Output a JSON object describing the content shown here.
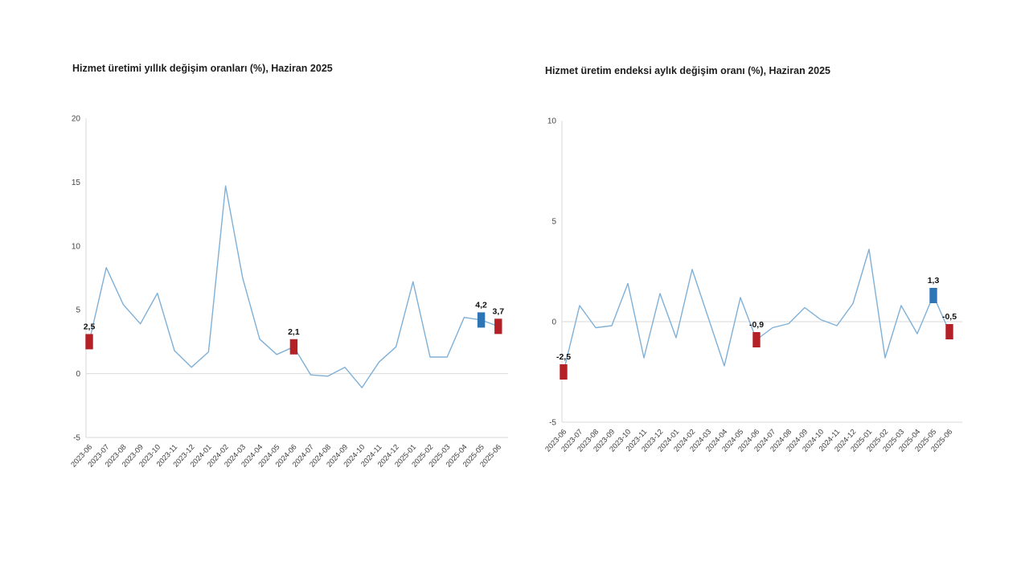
{
  "page": {
    "background": "#ffffff",
    "source_note": ""
  },
  "colors": {
    "series_line": "#7fb0d7",
    "marker_red": "#b32025",
    "marker_blue": "#2e75b6",
    "axis_line": "#d9d9d9",
    "zero_line": "#d9d9d9",
    "tick_text": "#454545",
    "title_text": "#1d1d1d",
    "data_label_text": "#111111"
  },
  "chart_data": [
    {
      "type": "line",
      "title": "Hizmet üretimi yıllık değişim oranları (%), Haziran 2025",
      "xlabel": "",
      "ylabel": "",
      "ylim": [
        -5,
        20
      ],
      "yticks": [
        20,
        15,
        10,
        5,
        0,
        -5
      ],
      "grid": "zero-line-only",
      "legend": "none",
      "categories": [
        "2023-06",
        "2023-07",
        "2023-08",
        "2023-09",
        "2023-10",
        "2023-11",
        "2023-12",
        "2024-01",
        "2024-02",
        "2024-03",
        "2024-04",
        "2024-05",
        "2024-06",
        "2024-07",
        "2024-08",
        "2024-09",
        "2024-10",
        "2024-11",
        "2024-12",
        "2025-01",
        "2025-02",
        "2025-03",
        "2025-04",
        "2025-05",
        "2025-06"
      ],
      "values": [
        2.5,
        8.3,
        5.4,
        3.9,
        6.3,
        1.8,
        0.5,
        1.7,
        14.7,
        7.5,
        2.7,
        1.5,
        2.1,
        -0.1,
        -0.2,
        0.5,
        -1.1,
        0.9,
        2.1,
        7.2,
        1.3,
        1.3,
        4.4,
        4.2,
        3.7
      ],
      "markers": [
        {
          "index": 0,
          "label": "2,5",
          "color": "#b32025"
        },
        {
          "index": 12,
          "label": "2,1",
          "color": "#b32025"
        },
        {
          "index": 23,
          "label": "4,2",
          "color": "#2e75b6"
        },
        {
          "index": 24,
          "label": "3,7",
          "color": "#b32025"
        }
      ]
    },
    {
      "type": "line",
      "title": "Hizmet üretim endeksi aylık değişim oranı (%), Haziran 2025",
      "xlabel": "",
      "ylabel": "",
      "ylim": [
        -5,
        10
      ],
      "yticks": [
        10,
        5,
        0,
        -5
      ],
      "grid": "zero-line-only",
      "legend": "none",
      "categories": [
        "2023-06",
        "2023-07",
        "2023-08",
        "2023-09",
        "2023-10",
        "2023-11",
        "2023-12",
        "2024-01",
        "2024-02",
        "2024-03",
        "2024-04",
        "2024-05",
        "2024-06",
        "2024-07",
        "2024-08",
        "2024-09",
        "2024-10",
        "2024-11",
        "2024-12",
        "2025-01",
        "2025-02",
        "2025-03",
        "2025-04",
        "2025-05",
        "2025-06"
      ],
      "values": [
        -2.5,
        0.8,
        -0.3,
        -0.2,
        1.9,
        -1.8,
        1.4,
        -0.8,
        2.6,
        0.2,
        -2.2,
        1.2,
        -0.9,
        -0.3,
        -0.1,
        0.7,
        0.1,
        -0.2,
        0.9,
        3.6,
        -1.8,
        0.8,
        -0.6,
        1.3,
        -0.5
      ],
      "markers": [
        {
          "index": 0,
          "label": "-2,5",
          "color": "#b32025"
        },
        {
          "index": 12,
          "label": "-0,9",
          "color": "#b32025"
        },
        {
          "index": 23,
          "label": "1,3",
          "color": "#2e75b6"
        },
        {
          "index": 24,
          "label": "-0,5",
          "color": "#b32025"
        }
      ]
    }
  ]
}
